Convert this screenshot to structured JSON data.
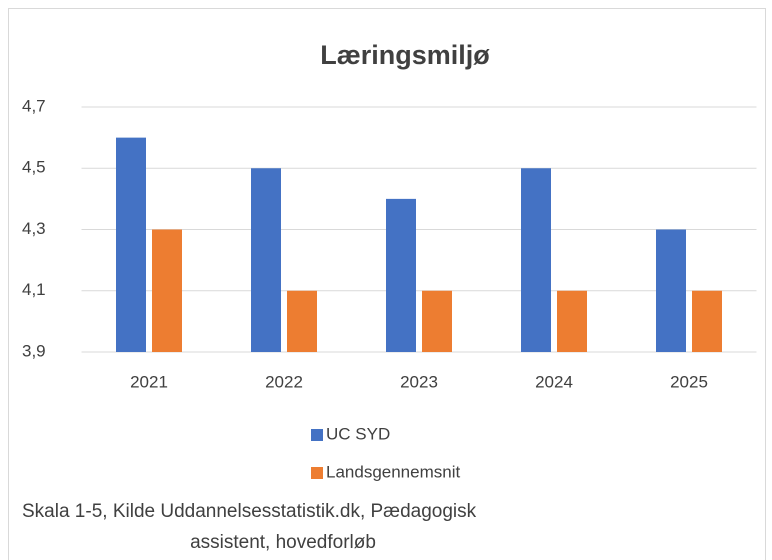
{
  "chart_data": {
    "type": "bar",
    "title": "Læringsmiljø",
    "categories": [
      "2021",
      "2022",
      "2023",
      "2024",
      "2025"
    ],
    "series": [
      {
        "name": "UC SYD",
        "color": "#4472c4",
        "values": [
          4.6,
          4.5,
          4.4,
          4.5,
          4.3
        ]
      },
      {
        "name": "Landsgennemsnit",
        "color": "#ed7d31",
        "values": [
          4.3,
          4.1,
          4.1,
          4.1,
          4.1
        ]
      }
    ],
    "ylim": [
      3.9,
      4.7
    ],
    "yticks": [
      {
        "value": 3.9,
        "label": "3,9"
      },
      {
        "value": 4.1,
        "label": "4,1"
      },
      {
        "value": 4.3,
        "label": "4,3"
      },
      {
        "value": 4.5,
        "label": "4,5"
      },
      {
        "value": 4.7,
        "label": "4,7"
      }
    ],
    "grid": true,
    "legend": "bottom",
    "caption": [
      "Skala 1-5, Kilde Uddannelsesstatistik.dk, Pædagogisk",
      "assistent, hovedforløb"
    ]
  }
}
